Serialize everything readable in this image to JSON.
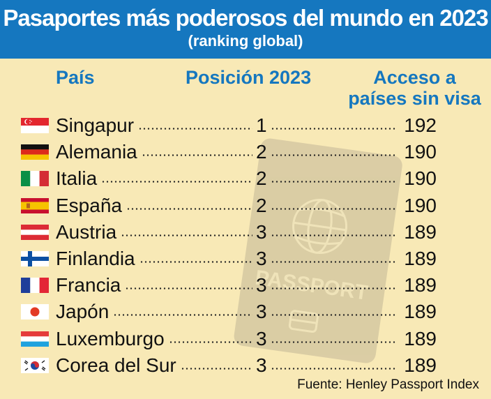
{
  "header": {
    "title": "Pasaportes más poderosos del mundo en 2023",
    "subtitle": "(ranking global)"
  },
  "columns": {
    "country": "País",
    "rank": "Posición 2023",
    "access_line1": "Acceso a",
    "access_line2": "países sin visa"
  },
  "colors": {
    "header_bg": "#1577bf",
    "page_bg": "#f8e9b6",
    "column_header": "#1577bf"
  },
  "chart_data": {
    "type": "table",
    "title": "Pasaportes más poderosos del mundo en 2023",
    "subtitle": "(ranking global)",
    "columns": [
      "País",
      "Posición 2023",
      "Acceso a países sin visa"
    ],
    "rows": [
      {
        "country": "Singapur",
        "flag": "singapore-flag",
        "rank": "1",
        "access": "192"
      },
      {
        "country": "Alemania",
        "flag": "germany-flag",
        "rank": "2",
        "access": "190"
      },
      {
        "country": "Italia",
        "flag": "italy-flag",
        "rank": "2",
        "access": "190"
      },
      {
        "country": "España",
        "flag": "spain-flag",
        "rank": "2",
        "access": "190"
      },
      {
        "country": "Austria",
        "flag": "austria-flag",
        "rank": "3",
        "access": "189"
      },
      {
        "country": "Finlandia",
        "flag": "finland-flag",
        "rank": "3",
        "access": "189"
      },
      {
        "country": "Francia",
        "flag": "france-flag",
        "rank": "3",
        "access": "189"
      },
      {
        "country": "Japón",
        "flag": "japan-flag",
        "rank": "3",
        "access": "189"
      },
      {
        "country": "Luxemburgo",
        "flag": "luxembourg-flag",
        "rank": "3",
        "access": "189"
      },
      {
        "country": "Corea del Sur",
        "flag": "south-korea-flag",
        "rank": "3",
        "access": "189"
      }
    ]
  },
  "passport_watermark": {
    "icon": "passport-icon",
    "text": "PASSPORT"
  },
  "source": "Fuente: Henley Passport Index"
}
